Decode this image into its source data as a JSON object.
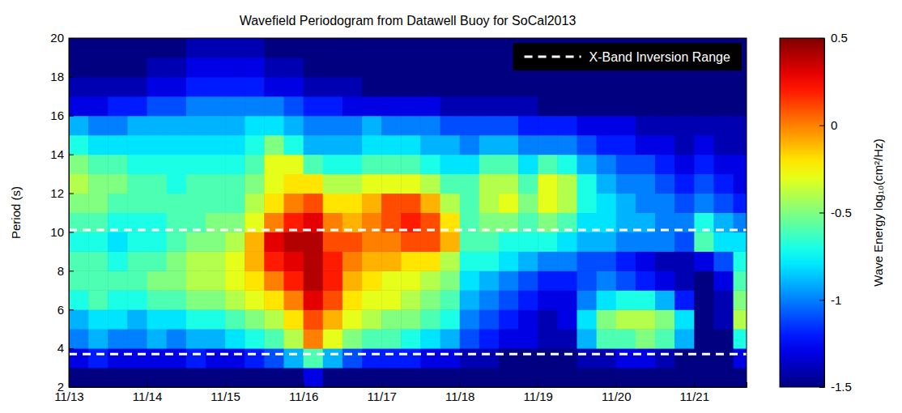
{
  "chart_data": {
    "type": "heatmap",
    "title": "Wavefield Periodogram from Datawell Buoy for SoCal2013",
    "y_label": "Period (s)",
    "xlim": [
      13,
      21.67
    ],
    "xticks": [
      {
        "value": 13,
        "label": "11/13"
      },
      {
        "value": 14,
        "label": "11/14"
      },
      {
        "value": 15,
        "label": "11/15"
      },
      {
        "value": 16,
        "label": "11/16"
      },
      {
        "value": 17,
        "label": "11/17"
      },
      {
        "value": 18,
        "label": "11/18"
      },
      {
        "value": 19,
        "label": "11/19"
      },
      {
        "value": 20,
        "label": "11/20"
      },
      {
        "value": 21,
        "label": "11/21"
      }
    ],
    "ylim": [
      2,
      20
    ],
    "yticks": [
      2,
      4,
      6,
      8,
      10,
      12,
      14,
      16,
      18,
      20
    ],
    "legend": "top-right",
    "series": [
      {
        "name": "X-Band Inversion Range",
        "type": "hline",
        "values": [
          3.7,
          10.1
        ],
        "color": "#ffffff",
        "line_style": "dashed"
      }
    ],
    "cells": {
      "x_edges": [
        13,
        13.25,
        13.5,
        13.75,
        14,
        14.25,
        14.5,
        14.75,
        15,
        15.25,
        15.5,
        15.75,
        16,
        16.25,
        16.5,
        16.75,
        17,
        17.25,
        17.5,
        17.75,
        18,
        18.25,
        18.5,
        18.75,
        19,
        19.25,
        19.5,
        19.75,
        20,
        20.25,
        20.5,
        20.75,
        21,
        21.25,
        21.5,
        21.75
      ],
      "y_edges": [
        2,
        3,
        4,
        5,
        6,
        7,
        8,
        9,
        10,
        11,
        12,
        13,
        14,
        15,
        16,
        17,
        18,
        19,
        20
      ],
      "values": [
        [
          -1.5,
          -1.5,
          -1.5,
          -1.5,
          -1.5,
          -1.5,
          -1.5,
          -1.5,
          -1.5,
          -1.5,
          -1.5,
          -1.5,
          -1.3,
          -1.5,
          -1.5,
          -1.5,
          -1.5,
          -1.5,
          -1.5,
          -1.5,
          -1.5,
          -1.5,
          -1.5,
          -1.5,
          -1.5,
          -1.5,
          -1.5,
          -1.5,
          -1.5,
          -1.5,
          -1.5,
          -1.5,
          -1.5,
          -1.5,
          -1.5
        ],
        [
          -1.3,
          -1.2,
          -1.3,
          -1.3,
          -1.3,
          -1.3,
          -1.2,
          -1.3,
          -1.3,
          -1.2,
          -1.1,
          -0.9,
          -0.6,
          -0.9,
          -1.1,
          -1.2,
          -1.2,
          -1.2,
          -1.3,
          -1.3,
          -1.4,
          -1.4,
          -1.5,
          -1.5,
          -1.5,
          -1.5,
          -1.4,
          -1.4,
          -1.3,
          -1.3,
          -1.4,
          -1.5,
          -1.5,
          -1.5,
          -1.3
        ],
        [
          -1.0,
          -0.9,
          -1.0,
          -1.0,
          -0.9,
          -1.0,
          -0.9,
          -0.9,
          -0.8,
          -0.7,
          -0.6,
          -0.4,
          0.0,
          -0.3,
          -0.5,
          -0.6,
          -0.6,
          -0.7,
          -0.8,
          -0.9,
          -1.1,
          -1.2,
          -1.3,
          -1.3,
          -1.4,
          -1.4,
          -0.9,
          -0.6,
          -0.6,
          -0.5,
          -0.6,
          -0.9,
          -1.5,
          -1.5,
          -0.7
        ],
        [
          -0.9,
          -0.8,
          -0.8,
          -0.9,
          -0.8,
          -0.8,
          -0.7,
          -0.7,
          -0.6,
          -0.5,
          -0.4,
          -0.2,
          0.1,
          -0.1,
          -0.3,
          -0.4,
          -0.5,
          -0.5,
          -0.6,
          -0.7,
          -1.0,
          -1.1,
          -1.2,
          -1.3,
          -1.4,
          -1.3,
          -0.8,
          -0.5,
          -0.4,
          -0.4,
          -0.5,
          -0.8,
          -1.5,
          -1.4,
          -0.4
        ],
        [
          -0.7,
          -0.6,
          -0.7,
          -0.7,
          -0.6,
          -0.6,
          -0.5,
          -0.5,
          -0.4,
          -0.3,
          -0.2,
          0.0,
          0.3,
          0.1,
          -0.2,
          -0.3,
          -0.3,
          -0.4,
          -0.5,
          -0.6,
          -0.9,
          -1.0,
          -1.1,
          -1.2,
          -1.3,
          -1.3,
          -1.0,
          -0.8,
          -0.7,
          -0.7,
          -0.9,
          -1.2,
          -1.5,
          -1.4,
          -0.5
        ],
        [
          -0.6,
          -0.6,
          -0.6,
          -0.6,
          -0.5,
          -0.5,
          -0.4,
          -0.4,
          -0.3,
          -0.2,
          0.0,
          0.2,
          0.4,
          0.2,
          -0.1,
          -0.2,
          -0.3,
          -0.3,
          -0.4,
          -0.5,
          -0.8,
          -0.9,
          -1.0,
          -1.1,
          -1.2,
          -1.2,
          -1.1,
          -1.0,
          -1.1,
          -1.2,
          -1.3,
          -1.4,
          -1.5,
          -1.3,
          -0.6
        ],
        [
          -0.6,
          -0.6,
          -0.7,
          -0.6,
          -0.6,
          -0.5,
          -0.4,
          -0.4,
          -0.3,
          -0.1,
          0.2,
          0.3,
          0.4,
          0.2,
          0.0,
          -0.1,
          -0.1,
          -0.2,
          -0.2,
          -0.4,
          -0.7,
          -0.7,
          -0.8,
          -0.9,
          -1.0,
          -1.0,
          -1.1,
          -1.1,
          -1.2,
          -1.3,
          -1.4,
          -1.4,
          -1.3,
          -1.1,
          -0.7
        ],
        [
          -0.7,
          -0.7,
          -0.8,
          -0.7,
          -0.7,
          -0.6,
          -0.5,
          -0.5,
          -0.4,
          -0.1,
          0.3,
          0.4,
          0.4,
          0.1,
          0.1,
          0.0,
          0.0,
          0.1,
          0.1,
          -0.1,
          -0.6,
          -0.6,
          -0.7,
          -0.7,
          -0.7,
          -0.8,
          -0.9,
          -0.9,
          -1.0,
          -1.0,
          -1.0,
          -1.1,
          -0.6,
          -0.8,
          -0.8
        ],
        [
          -0.6,
          -0.6,
          -0.7,
          -0.7,
          -0.7,
          -0.6,
          -0.6,
          -0.5,
          -0.5,
          -0.3,
          0.0,
          0.2,
          0.3,
          0.0,
          -0.1,
          0.0,
          0.1,
          0.2,
          0.1,
          -0.2,
          -0.6,
          -0.5,
          -0.5,
          -0.6,
          -0.5,
          -0.6,
          -0.8,
          -0.8,
          -0.9,
          -0.9,
          -1.0,
          -1.0,
          -0.7,
          -0.9,
          -1.0
        ],
        [
          -0.5,
          -0.5,
          -0.6,
          -0.6,
          -0.6,
          -0.6,
          -0.6,
          -0.6,
          -0.6,
          -0.4,
          -0.2,
          0.0,
          0.1,
          -0.2,
          -0.2,
          -0.1,
          0.1,
          0.1,
          -0.1,
          -0.4,
          -0.6,
          -0.4,
          -0.3,
          -0.5,
          -0.3,
          -0.4,
          -0.7,
          -0.8,
          -0.9,
          -1.0,
          -1.0,
          -1.1,
          -1.0,
          -1.1,
          -1.2
        ],
        [
          -0.4,
          -0.5,
          -0.5,
          -0.6,
          -0.6,
          -0.7,
          -0.6,
          -0.6,
          -0.6,
          -0.5,
          -0.3,
          -0.2,
          -0.2,
          -0.4,
          -0.4,
          -0.3,
          -0.3,
          -0.3,
          -0.4,
          -0.6,
          -0.6,
          -0.4,
          -0.4,
          -0.6,
          -0.3,
          -0.4,
          -0.7,
          -0.9,
          -1.0,
          -1.0,
          -1.1,
          -1.2,
          -1.1,
          -1.2,
          -1.3
        ],
        [
          -0.5,
          -0.6,
          -0.6,
          -0.7,
          -0.7,
          -0.7,
          -0.7,
          -0.7,
          -0.7,
          -0.6,
          -0.3,
          -0.3,
          -0.6,
          -0.7,
          -0.7,
          -0.6,
          -0.6,
          -0.6,
          -0.7,
          -0.8,
          -0.8,
          -0.6,
          -0.6,
          -0.8,
          -0.6,
          -0.7,
          -0.9,
          -1.0,
          -1.1,
          -1.1,
          -1.2,
          -1.3,
          -1.2,
          -1.3,
          -1.3
        ],
        [
          -0.7,
          -0.8,
          -0.8,
          -0.8,
          -0.8,
          -0.8,
          -0.8,
          -0.8,
          -0.8,
          -0.7,
          -0.5,
          -0.7,
          -0.9,
          -0.9,
          -0.9,
          -0.8,
          -0.8,
          -0.8,
          -0.9,
          -0.9,
          -1.0,
          -0.9,
          -0.9,
          -1.0,
          -1.0,
          -1.0,
          -1.1,
          -1.2,
          -1.2,
          -1.3,
          -1.3,
          -1.4,
          -1.3,
          -1.4,
          -1.4
        ],
        [
          -0.9,
          -1.0,
          -1.0,
          -0.9,
          -0.9,
          -0.9,
          -0.9,
          -0.9,
          -0.9,
          -0.8,
          -0.8,
          -0.9,
          -1.0,
          -1.0,
          -1.0,
          -0.9,
          -1.0,
          -1.0,
          -1.0,
          -1.1,
          -1.1,
          -1.1,
          -1.1,
          -1.2,
          -1.2,
          -1.2,
          -1.3,
          -1.3,
          -1.3,
          -1.4,
          -1.4,
          -1.4,
          -1.4,
          -1.4,
          -1.4
        ],
        [
          -1.3,
          -1.3,
          -1.2,
          -1.2,
          -1.1,
          -1.1,
          -1.0,
          -1.0,
          -1.0,
          -1.0,
          -1.0,
          -1.1,
          -1.2,
          -1.2,
          -1.3,
          -1.3,
          -1.3,
          -1.3,
          -1.3,
          -1.4,
          -1.4,
          -1.4,
          -1.4,
          -1.4,
          -1.5,
          -1.5,
          -1.5,
          -1.5,
          -1.5,
          -1.5,
          -1.5,
          -1.5,
          -1.5,
          -1.5,
          -1.5
        ],
        [
          -1.4,
          -1.4,
          -1.4,
          -1.4,
          -1.3,
          -1.3,
          -1.2,
          -1.2,
          -1.2,
          -1.2,
          -1.3,
          -1.3,
          -1.4,
          -1.4,
          -1.4,
          -1.5,
          -1.5,
          -1.5,
          -1.5,
          -1.5,
          -1.5,
          -1.5,
          -1.5,
          -1.5,
          -1.5,
          -1.5,
          -1.5,
          -1.5,
          -1.5,
          -1.5,
          -1.5,
          -1.5,
          -1.5,
          -1.5,
          -1.5
        ],
        [
          -1.5,
          -1.5,
          -1.5,
          -1.5,
          -1.4,
          -1.4,
          -1.3,
          -1.3,
          -1.3,
          -1.3,
          -1.4,
          -1.4,
          -1.5,
          -1.5,
          -1.5,
          -1.5,
          -1.5,
          -1.5,
          -1.5,
          -1.5,
          -1.5,
          -1.5,
          -1.5,
          -1.5,
          -1.5,
          -1.5,
          -1.5,
          -1.5,
          -1.5,
          -1.5,
          -1.5,
          -1.5,
          -1.5,
          -1.5,
          -1.5
        ],
        [
          -1.5,
          -1.5,
          -1.5,
          -1.5,
          -1.5,
          -1.5,
          -1.4,
          -1.4,
          -1.4,
          -1.4,
          -1.5,
          -1.5,
          -1.5,
          -1.5,
          -1.5,
          -1.5,
          -1.5,
          -1.5,
          -1.5,
          -1.5,
          -1.5,
          -1.5,
          -1.5,
          -1.5,
          -1.5,
          -1.5,
          -1.5,
          -1.5,
          -1.5,
          -1.5,
          -1.5,
          -1.5,
          -1.5,
          -1.5,
          -1.5
        ]
      ]
    },
    "colorbar": {
      "label": "Wave Energy log₁₀(cm²/Hz)",
      "lim": [
        -1.5,
        0.5
      ],
      "ticks": [
        -1.5,
        -1,
        -0.5,
        0,
        0.5
      ]
    }
  }
}
